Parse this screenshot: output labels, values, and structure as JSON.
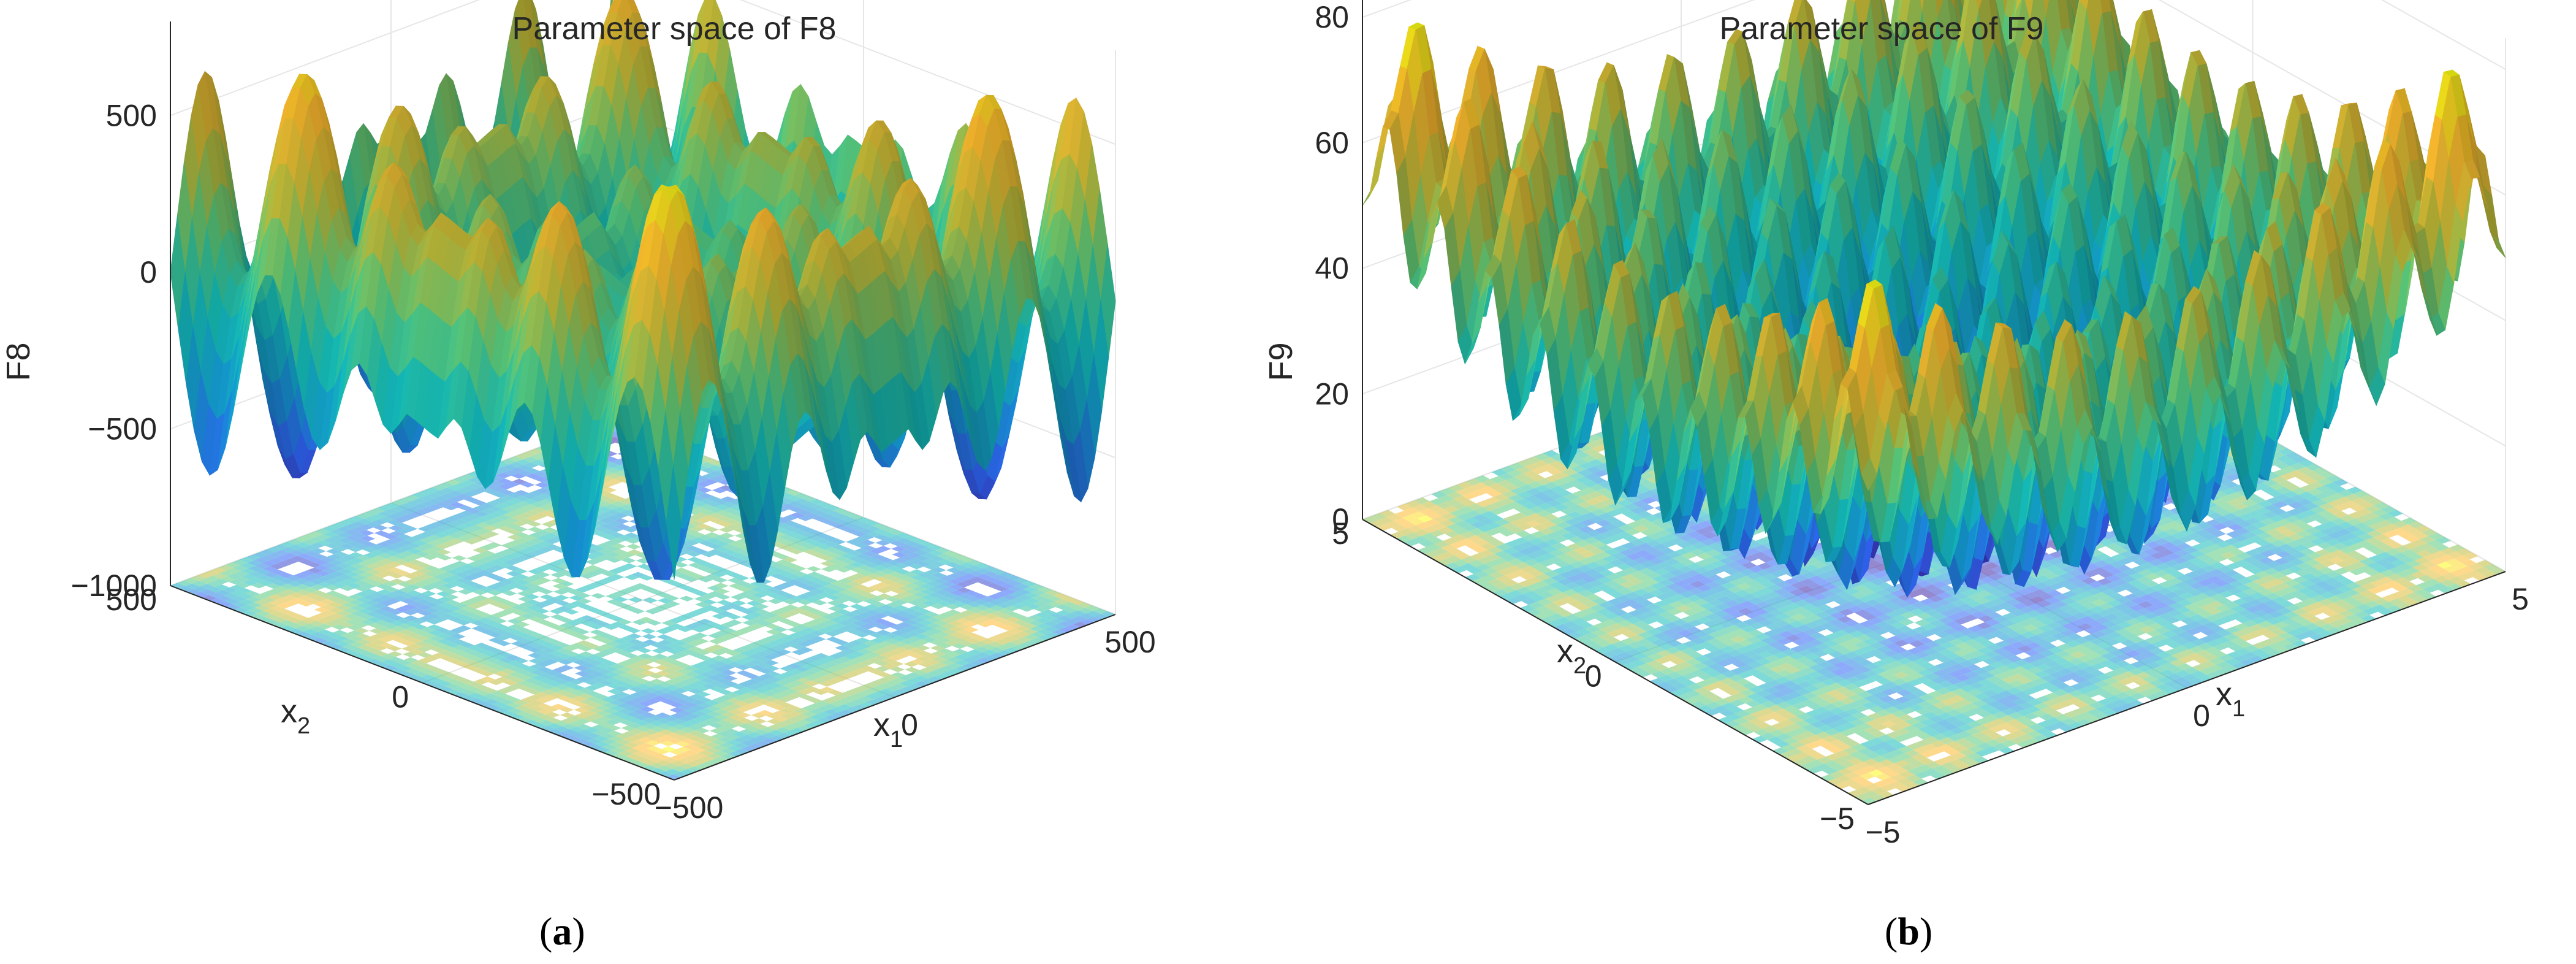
{
  "figure": {
    "caption_a": "(a)",
    "caption_a_letter": "a",
    "caption_b": "(b)",
    "caption_b_letter": "b"
  },
  "colors": {
    "colormap": [
      "#3e26a8",
      "#2f65f5",
      "#1498d3",
      "#14bcb8",
      "#58c97b",
      "#c0bc39",
      "#fdba2e",
      "#f9fb15"
    ],
    "axis": "#262626",
    "grid": "#e6e6e6"
  },
  "chart_data": [
    {
      "type": "surface3d",
      "title": "Parameter space of F8",
      "zlabel": "F8",
      "xlabel": "x",
      "xlabel_sub": "1",
      "ylabel": "x",
      "ylabel_sub": "2",
      "xlim": [
        -500,
        500
      ],
      "ylim": [
        -500,
        500
      ],
      "zlim": [
        -1000,
        800
      ],
      "xticks": [
        -500,
        0,
        500
      ],
      "xtick_labels": [
        "−500",
        "0",
        "500"
      ],
      "yticks": [
        -500,
        0,
        500
      ],
      "ytick_labels": [
        "−500",
        "0",
        "500"
      ],
      "zticks": [
        -1000,
        -500,
        0,
        500
      ],
      "ztick_labels": [
        "−1000",
        "−500",
        "0",
        "500"
      ],
      "function": "schwefel",
      "contour_on_floor": true,
      "grid": true
    },
    {
      "type": "surface3d",
      "title": "Parameter space of F9",
      "zlabel": "F9",
      "xlabel": "x",
      "xlabel_sub": "1",
      "ylabel": "x",
      "ylabel_sub": "2",
      "xlim": [
        -5,
        5
      ],
      "ylim": [
        -5,
        5
      ],
      "zlim": [
        0,
        85
      ],
      "xticks": [
        -5,
        0,
        5
      ],
      "xtick_labels": [
        "−5",
        "0",
        "5"
      ],
      "yticks": [
        -5,
        0,
        5
      ],
      "ytick_labels": [
        "−5",
        "0",
        "5"
      ],
      "zticks": [
        0,
        20,
        40,
        60,
        80
      ],
      "ztick_labels": [
        "0",
        "20",
        "40",
        "60",
        "80"
      ],
      "function": "rastrigin",
      "contour_on_floor": true,
      "grid": true
    }
  ]
}
